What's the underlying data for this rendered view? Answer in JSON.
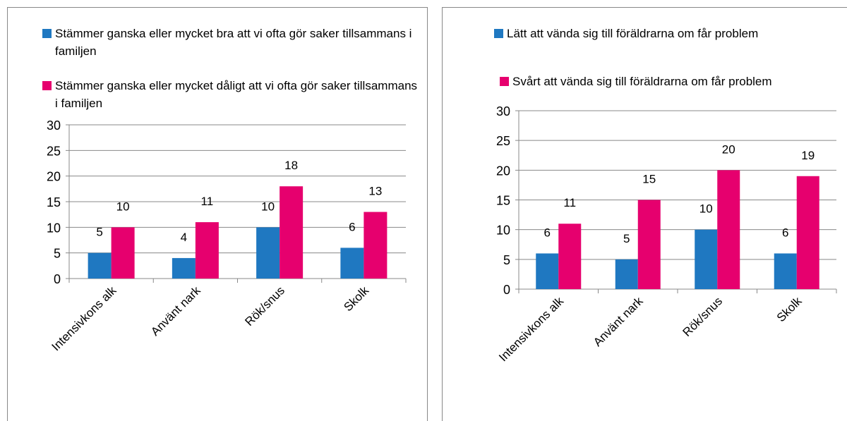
{
  "chart_data": [
    {
      "type": "bar",
      "categories": [
        "Intensivkons alk",
        "Använt nark",
        "Rök/snus",
        "Skolk"
      ],
      "series": [
        {
          "name": "Stämmer ganska eller mycket bra att vi ofta gör saker tillsammans i familjen",
          "color": "#1f78c1",
          "values": [
            5,
            4,
            10,
            6
          ]
        },
        {
          "name": "Stämmer ganska eller mycket dåligt att vi ofta gör saker tillsammans i familjen",
          "color": "#e6006e",
          "values": [
            10,
            11,
            18,
            13
          ]
        }
      ],
      "ylim": [
        0,
        30
      ],
      "yticks": [
        0,
        5,
        10,
        15,
        20,
        25,
        30
      ],
      "grid": true,
      "legend": "top"
    },
    {
      "type": "bar",
      "categories": [
        "Intensivkons alk",
        "Använt nark",
        "Rök/snus",
        "Skolk"
      ],
      "series": [
        {
          "name": "Lätt att vända sig till föräldrarna om får problem",
          "color": "#1f78c1",
          "values": [
            6,
            5,
            10,
            6
          ]
        },
        {
          "name": "Svårt att vända sig till föräldrarna om får problem",
          "color": "#e6006e",
          "values": [
            11,
            15,
            20,
            19
          ]
        }
      ],
      "ylim": [
        0,
        30
      ],
      "yticks": [
        0,
        5,
        10,
        15,
        20,
        25,
        30
      ],
      "grid": true,
      "legend": "top"
    }
  ]
}
